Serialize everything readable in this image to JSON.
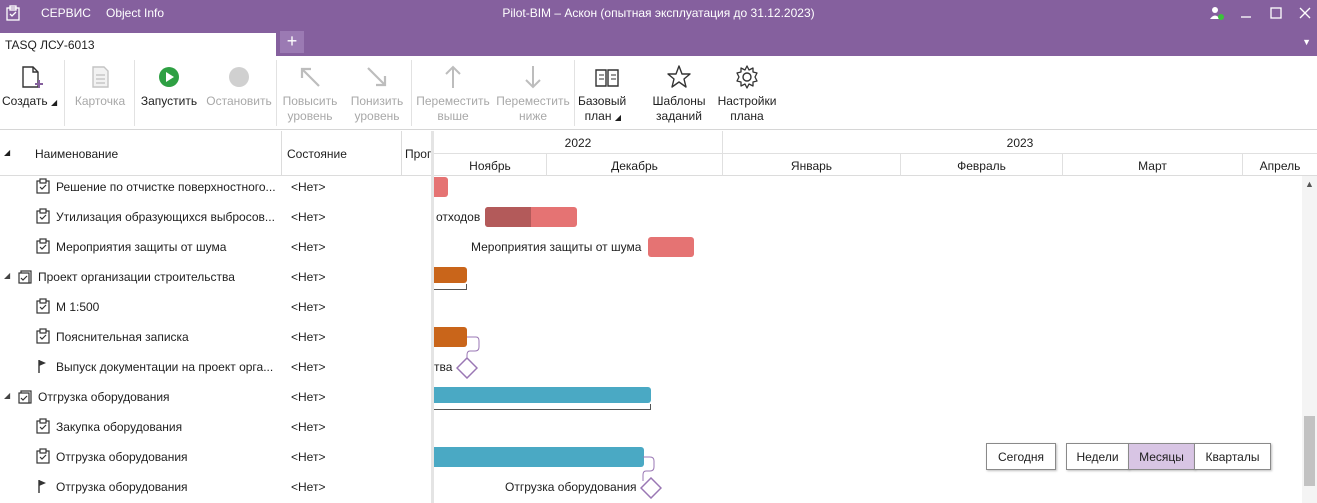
{
  "titlebar": {
    "menu": [
      "СЕРВИС",
      "Object Info"
    ],
    "title": "Pilot-BIM – Аскон (опытная эксплуатация до 31.12.2023)"
  },
  "tabs": {
    "active": "TASQ ЛСУ-6013",
    "add": "+"
  },
  "ribbon": {
    "create": "Создать",
    "card": "Карточка",
    "start": "Запустить",
    "stop": "Остановить",
    "raise_1": "Повысить",
    "raise_2": "уровень",
    "lower_1": "Понизить",
    "lower_2": "уровень",
    "up_1": "Переместить",
    "up_2": "выше",
    "down_1": "Переместить",
    "down_2": "ниже",
    "baseline_1": "Базовый",
    "baseline_2": "план",
    "templates_1": "Шаблоны",
    "templates_2": "заданий",
    "settings_1": "Настройки",
    "settings_2": "плана"
  },
  "grid": {
    "columns": {
      "name": "Наименование",
      "state": "Состояние",
      "progress": "Прог"
    },
    "rows": [
      {
        "name": "Решение по отчистке поверхностного...",
        "state": "<Нет>"
      },
      {
        "name": "Утилизация образующихся выбросов...",
        "state": "<Нет>"
      },
      {
        "name": "Мероприятия защиты от шума",
        "state": "<Нет>"
      },
      {
        "name": "Проект организации строительства",
        "state": "<Нет>"
      },
      {
        "name": "М 1:500",
        "state": "<Нет>"
      },
      {
        "name": "Пояснительная записка",
        "state": "<Нет>"
      },
      {
        "name": "Выпуск документации на проект орга...",
        "state": "<Нет>"
      },
      {
        "name": "Отгрузка оборудования",
        "state": "<Нет>"
      },
      {
        "name": "Закупка оборудования",
        "state": "<Нет>"
      },
      {
        "name": "Отгрузка оборудования",
        "state": "<Нет>"
      },
      {
        "name": "Отгрузка оборудования",
        "state": "<Нет>"
      }
    ]
  },
  "timeline": {
    "years": [
      "2022",
      "2023"
    ],
    "months": [
      "Ноябрь",
      "Декабрь",
      "Январь",
      "Февраль",
      "Март",
      "Апрель"
    ]
  },
  "gantt": {
    "label_waste": "отходов",
    "label_noise": "Мероприятия защиты от шума",
    "label_issue": "тва",
    "label_shipment": "Отгрузка оборудования"
  },
  "view_buttons": {
    "today": "Сегодня",
    "weeks": "Недели",
    "months": "Месяцы",
    "quarters": "Кварталы",
    "active": "months"
  },
  "colors": {
    "accent": "#85609e",
    "task_red": "#e57373",
    "task_red_done": "#b35a5a",
    "task_orange": "#c9651a",
    "task_teal": "#4aa9c4",
    "milestone": "#9a77b4"
  }
}
